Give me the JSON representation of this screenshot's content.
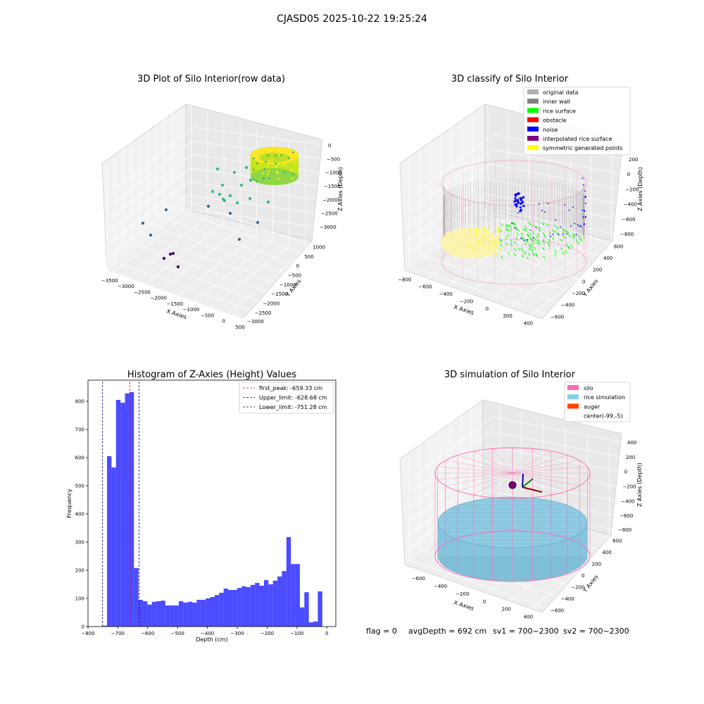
{
  "suptitle": "CJASD05 2025-10-22 19:25:24",
  "status_line": {
    "flag": "flag = 0",
    "avg_depth": "avgDepth = 692 cm",
    "sv1": "sv1 = 700~2300",
    "sv2": "sv2 = 700~2300"
  },
  "chart_data": [
    {
      "type": "scatter",
      "title": "3D Plot of Silo Interior(row data)",
      "xlabel": "X Axies",
      "ylabel": "Y Axies",
      "zlabel": "Z Axies (Depth)",
      "x_ticks": [
        "−3500",
        "−3000",
        "−2500",
        "−2000",
        "−1500",
        "−1000",
        "−500",
        "0",
        "500"
      ],
      "y_ticks": [
        "1000",
        "500",
        "0",
        "−500",
        "−1000",
        "−1500",
        "−2000",
        "−2500",
        "−3000"
      ],
      "z_ticks": [
        "0",
        "−500",
        "−1000",
        "−1500",
        "−2000",
        "−2500",
        "−3000"
      ],
      "colormap": [
        "#440154",
        "#31688e",
        "#35b779",
        "#fde725"
      ]
    },
    {
      "type": "scatter",
      "title": "3D classify of Silo Interior",
      "xlabel": "X Axies",
      "ylabel": "Y Axies",
      "zlabel": "Z Axies (Depth)",
      "x_ticks": [
        "−800",
        "−600",
        "−400",
        "−200",
        "0",
        "200",
        "400"
      ],
      "y_ticks": [
        "600",
        "400",
        "200",
        "0",
        "−200",
        "−400",
        "−600"
      ],
      "z_ticks": [
        "200",
        "0",
        "−200",
        "−400",
        "−600",
        "−800"
      ],
      "legend": [
        {
          "label": "original data",
          "color": "#b0b0b0"
        },
        {
          "label": "inner wall",
          "color": "#808080"
        },
        {
          "label": "rice surface",
          "color": "#00ff00"
        },
        {
          "label": "obstacle",
          "color": "#ff0000"
        },
        {
          "label": "noise",
          "color": "#0000ff"
        },
        {
          "label": "interpolated rice surface",
          "color": "#800080"
        },
        {
          "label": "symmetric generated points",
          "color": "#ffff00"
        }
      ],
      "legend_placement": "top-right"
    },
    {
      "type": "bar",
      "title": "Histogram of Z-Axies (Height) Values",
      "xlabel": "Depth (cm)",
      "ylabel": "Frequency",
      "xlim": [
        -800,
        30
      ],
      "ylim": [
        0,
        875
      ],
      "x_ticks": [
        -800,
        -700,
        -600,
        -500,
        -400,
        -300,
        -200,
        -100,
        0
      ],
      "y_ticks": [
        0,
        100,
        200,
        300,
        400,
        500,
        600,
        700,
        800
      ],
      "x_tick_labels": [
        "−800",
        "−700",
        "−600",
        "−500",
        "−400",
        "−300",
        "−200",
        "−100",
        "0"
      ],
      "bar_color": "#0000ff",
      "bin_start": -751.28,
      "bin_width": 15.02,
      "values": [
        3,
        605,
        565,
        805,
        795,
        828,
        833,
        208,
        95,
        90,
        78,
        88,
        90,
        92,
        75,
        75,
        75,
        90,
        85,
        88,
        85,
        95,
        95,
        100,
        105,
        112,
        120,
        135,
        130,
        130,
        137,
        143,
        140,
        148,
        155,
        145,
        165,
        150,
        163,
        178,
        197,
        318,
        222,
        222,
        68,
        122,
        15,
        18,
        125
      ],
      "vlines": [
        {
          "label": "first_peak: -659.33 cm",
          "x": -659.33,
          "color": "#ff0000"
        },
        {
          "label": "Upper_limit: -628.68 cm",
          "x": -628.68,
          "color": "#00008b"
        },
        {
          "label": "Lower_limit: -751.28 cm",
          "x": -751.28,
          "color": "#00008b"
        }
      ],
      "legend_placement": "top-right"
    },
    {
      "type": "scatter",
      "title": "3D simulation of Silo Interior",
      "xlabel": "X Axies",
      "ylabel": "Y Axies",
      "zlabel": "Z Axies (Depth)",
      "x_ticks": [
        "−600",
        "−400",
        "−200",
        "0",
        "200",
        "400"
      ],
      "y_ticks": [
        "600",
        "400",
        "200",
        "0",
        "−200",
        "−400",
        "−600"
      ],
      "z_ticks": [
        "400",
        "200",
        "0",
        "−200",
        "−400",
        "−600",
        "−800"
      ],
      "legend": [
        {
          "label": "silo",
          "color": "#ff69b4"
        },
        {
          "label": "rice simulation",
          "color": "#87ceeb"
        },
        {
          "label": "auger",
          "color": "#ff4500"
        },
        {
          "label": "center(-99,-5)",
          "color": ""
        }
      ],
      "legend_placement": "top-right"
    }
  ]
}
